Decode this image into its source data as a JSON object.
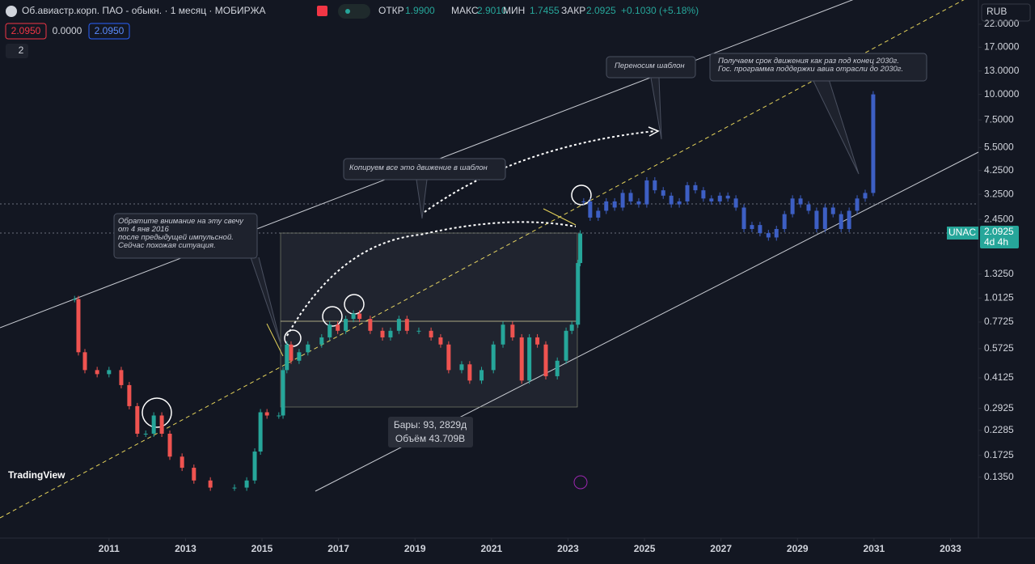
{
  "header": {
    "title": "Об.авиастр.корп. ПАО - обыкн. · 1 месяц · МОБИРЖА",
    "open_label": "ОТКР",
    "open": "1.9900",
    "high_label": "МАКС",
    "high": "2.9010",
    "low_label": "МИН",
    "low": "1.7455",
    "close_label": "ЗАКР",
    "close": "2.0925",
    "change": "+0.1030 (+5.18%)",
    "sell": "2.0950",
    "spread": "0.0000",
    "buy": "2.0950",
    "indicators": "2",
    "currency": "RUB",
    "logo": "TradingView",
    "tag_symbol": "UNAC",
    "tag_price": "2.0925",
    "tag_timer": "4d 4h",
    "measure_bars": "Бары: 93, 2829д",
    "measure_volume": "Объём 43.709B"
  },
  "chart_data": {
    "type": "candlestick",
    "log_scale": true,
    "annotations": [
      [
        "Обратите внимание на эту свечу",
        "от 4 янв 2016",
        "после предыдущей импульсной.",
        "Сейчас похожая ситуация."
      ],
      [
        "Копируем все это движение в шаблон"
      ],
      [
        "Переносим шаблон"
      ],
      [
        "Получаем срок движения как раз под конец 2030г.",
        "Гос. программа поддержки авиа отрасли до 2030г."
      ]
    ],
    "xlim": [
      2008.15,
      2033.73
    ],
    "xticks": [
      2011,
      2013,
      2015,
      2017,
      2019,
      2021,
      2023,
      2025,
      2027,
      2029,
      2031,
      2033
    ],
    "ylim": [
      0.068,
      28.9
    ],
    "yticks": [
      {
        "value": 22,
        "label": "22.0000"
      },
      {
        "value": 17,
        "label": "17.0000"
      },
      {
        "value": 13,
        "label": "13.0000"
      },
      {
        "value": 10,
        "label": "10.0000"
      },
      {
        "value": 7.5,
        "label": "7.5000"
      },
      {
        "value": 5.5,
        "label": "5.5000"
      },
      {
        "value": 4.25,
        "label": "4.2500"
      },
      {
        "value": 3.25,
        "label": "3.2500"
      },
      {
        "value": 2.45,
        "label": "2.4500"
      },
      {
        "value": 1.325,
        "label": "1.3250"
      },
      {
        "value": 1.0125,
        "label": "1.0125"
      },
      {
        "value": 0.7725,
        "label": "0.7725"
      },
      {
        "value": 0.5725,
        "label": "0.5725"
      },
      {
        "value": 0.4125,
        "label": "0.4125"
      },
      {
        "value": 0.2925,
        "label": "0.2925"
      },
      {
        "value": 0.2285,
        "label": "0.2285"
      },
      {
        "value": 0.1725,
        "label": "0.1725"
      },
      {
        "value": 0.135,
        "label": "0.1350"
      }
    ],
    "series": [
      {
        "name": "UNAC",
        "color": "#26a69a",
        "down_color": "#ef5350",
        "x": [
          2010.1,
          2010.2,
          2010.37,
          2010.69,
          2011,
          2011.32,
          2011.53,
          2011.74,
          2011.96,
          2012.17,
          2012.38,
          2012.59,
          2012.91,
          2013.22,
          2013.65,
          2014.28,
          2014.6,
          2014.81,
          2014.96,
          2015.13,
          2015.44,
          2015.55,
          2015.65,
          2015.76,
          2015.97,
          2016.2,
          2016.56,
          2016.77,
          2016.98,
          2017.19,
          2017.39,
          2017.55,
          2017.83,
          2018.15,
          2018.36,
          2018.58,
          2018.79,
          2019.1,
          2019.42,
          2019.67,
          2019.88,
          2020.22,
          2020.43,
          2020.74,
          2021.05,
          2021.3,
          2021.55,
          2021.79,
          2021.99,
          2022.2,
          2022.42,
          2022.72,
          2022.95,
          2023.1,
          2023.26,
          2023.32
        ],
        "values": [
          1.0,
          0.55,
          0.45,
          0.43,
          0.45,
          0.38,
          0.3,
          0.22,
          0.22,
          0.27,
          0.22,
          0.17,
          0.15,
          0.13,
          0.12,
          0.12,
          0.13,
          0.18,
          0.28,
          0.27,
          0.27,
          0.45,
          0.6,
          0.5,
          0.55,
          0.6,
          0.65,
          0.75,
          0.7,
          0.8,
          0.85,
          0.8,
          0.7,
          0.65,
          0.7,
          0.8,
          0.7,
          0.7,
          0.65,
          0.6,
          0.45,
          0.48,
          0.4,
          0.45,
          0.6,
          0.75,
          0.65,
          0.4,
          0.65,
          0.6,
          0.42,
          0.5,
          0.7,
          0.75,
          1.5,
          2.09
        ]
      },
      {
        "name": "Шаблон",
        "color": "#3d5fc4",
        "x": [
          2023.41,
          2023.58,
          2023.79,
          2024,
          2024.22,
          2024.43,
          2024.64,
          2024.85,
          2025.06,
          2025.27,
          2025.49,
          2025.7,
          2025.91,
          2026.12,
          2026.33,
          2026.54,
          2026.75,
          2026.97,
          2027.18,
          2027.39,
          2027.6,
          2027.81,
          2028.02,
          2028.24,
          2028.45,
          2028.66,
          2028.87,
          2029.08,
          2029.29,
          2029.5,
          2029.72,
          2029.93,
          2030.14,
          2030.35,
          2030.56,
          2030.77,
          2030.98
        ],
        "values": [
          3.0,
          2.5,
          2.7,
          3.0,
          2.8,
          3.3,
          3.0,
          2.9,
          3.8,
          3.4,
          3.2,
          2.9,
          3.0,
          3.6,
          3.4,
          3.1,
          3.0,
          3.2,
          3.1,
          2.8,
          2.2,
          2.3,
          2.1,
          2.0,
          2.2,
          2.6,
          3.1,
          2.9,
          2.7,
          2.2,
          2.8,
          2.6,
          2.2,
          2.7,
          3.1,
          3.3,
          10.0
        ]
      }
    ]
  }
}
